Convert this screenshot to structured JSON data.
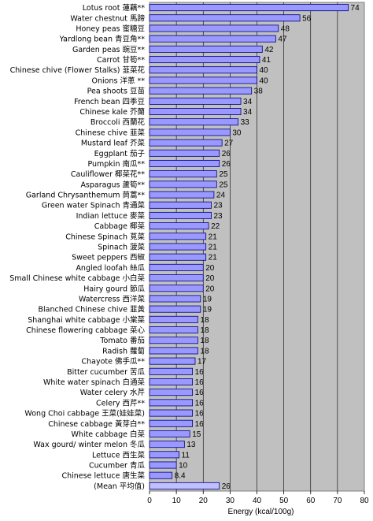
{
  "chart_data": {
    "type": "bar",
    "orientation": "horizontal",
    "categories": [
      "Lotus root 蓮藕**",
      "Water chestnut 馬蹄",
      "Honey peas 蜜糖豆",
      "Yardlong bean 青豆角**",
      "Garden peas 豌豆**",
      "Carrot 甘筍**",
      "Chinese chive (Flower Stalks) 韮菜花",
      "Onions 洋蔥 **",
      "Pea shoots 豆苗",
      "French bean 四季豆",
      "Chinese kale 芥蘭",
      "Broccoli 西蘭花",
      "Chinese chive 韮菜",
      "Mustard leaf 芥菜",
      "Eggplant 茄子",
      "Pumpkin 南瓜**",
      "Cauliflower 椰菜花**",
      "Asparagus 蘆筍**",
      "Garland Chrysanthemum 茼蒿**",
      "Green water Spinach 青通菜",
      "Indian lettuce 麥菜",
      "Cabbage 椰菜",
      "Chinese Spinach 莧菜",
      "Spinach 菠菜",
      "Sweet peppers 西椒",
      "Angled loofah 絲瓜",
      "Small Chinese white cabbage 小白菜",
      "Hairy gourd 節瓜",
      "Watercress 西洋菜",
      "Blanched Chinese chive 韮黃",
      "Shanghai white cabbage 小棠菜",
      "Chinese flowering cabbage 菜心",
      "Tomato 番茄",
      "Radish 蘿蔔",
      "Chayote 佛手瓜**",
      "Bitter cucumber 苦瓜",
      "White water spinach 白通菜",
      "Water celery 水芹",
      "Celery 西芹**",
      "Wong Choi cabbage 王菜(娃娃菜)",
      "Chinese cabbage 黃芽白**",
      "White cabbage 白菜",
      "Wax gourd/ winter melon 冬瓜",
      "Lettuce 西生菜",
      "Cucumber 青瓜",
      "Chinese lettuce 唐生菜",
      "(Mean 平均值)"
    ],
    "values": [
      74,
      56,
      48,
      47,
      42,
      41,
      40,
      40,
      38,
      34,
      34,
      33,
      30,
      27,
      26,
      26,
      25,
      25,
      24,
      23,
      23,
      22,
      21,
      21,
      21,
      20,
      20,
      20,
      19,
      19,
      18,
      18,
      18,
      18,
      17,
      16,
      16,
      16,
      16,
      16,
      16,
      15,
      13,
      11,
      10,
      8.4,
      26
    ],
    "value_labels": [
      "74",
      "56",
      "48",
      "47",
      "42",
      "41",
      "40",
      "40",
      "38",
      "34",
      "34",
      "33",
      "30",
      "27",
      "26",
      "26",
      "25",
      "25",
      "24",
      "23",
      "23",
      "22",
      "21",
      "21",
      "21",
      "20",
      "20",
      "20",
      "19",
      "19",
      "18",
      "18",
      "18",
      "18",
      "17",
      "16",
      "16",
      "16",
      "16",
      "16",
      "16",
      "15",
      "13",
      "11",
      "10",
      "8.4",
      "26"
    ],
    "xlabel": "Energy (kcal/100g)",
    "ylabel": "",
    "title": "",
    "xlim": [
      0,
      80
    ],
    "xticks": [
      0,
      10,
      20,
      30,
      40,
      50,
      60,
      70,
      80
    ],
    "grid": true,
    "colors": {
      "plot_bg": "#c0c0c0",
      "bar_fill": "#9999ff",
      "bar_stroke": "#000080",
      "mean_bar_fill": "#c0c0ff",
      "gridline": "#000000"
    }
  }
}
